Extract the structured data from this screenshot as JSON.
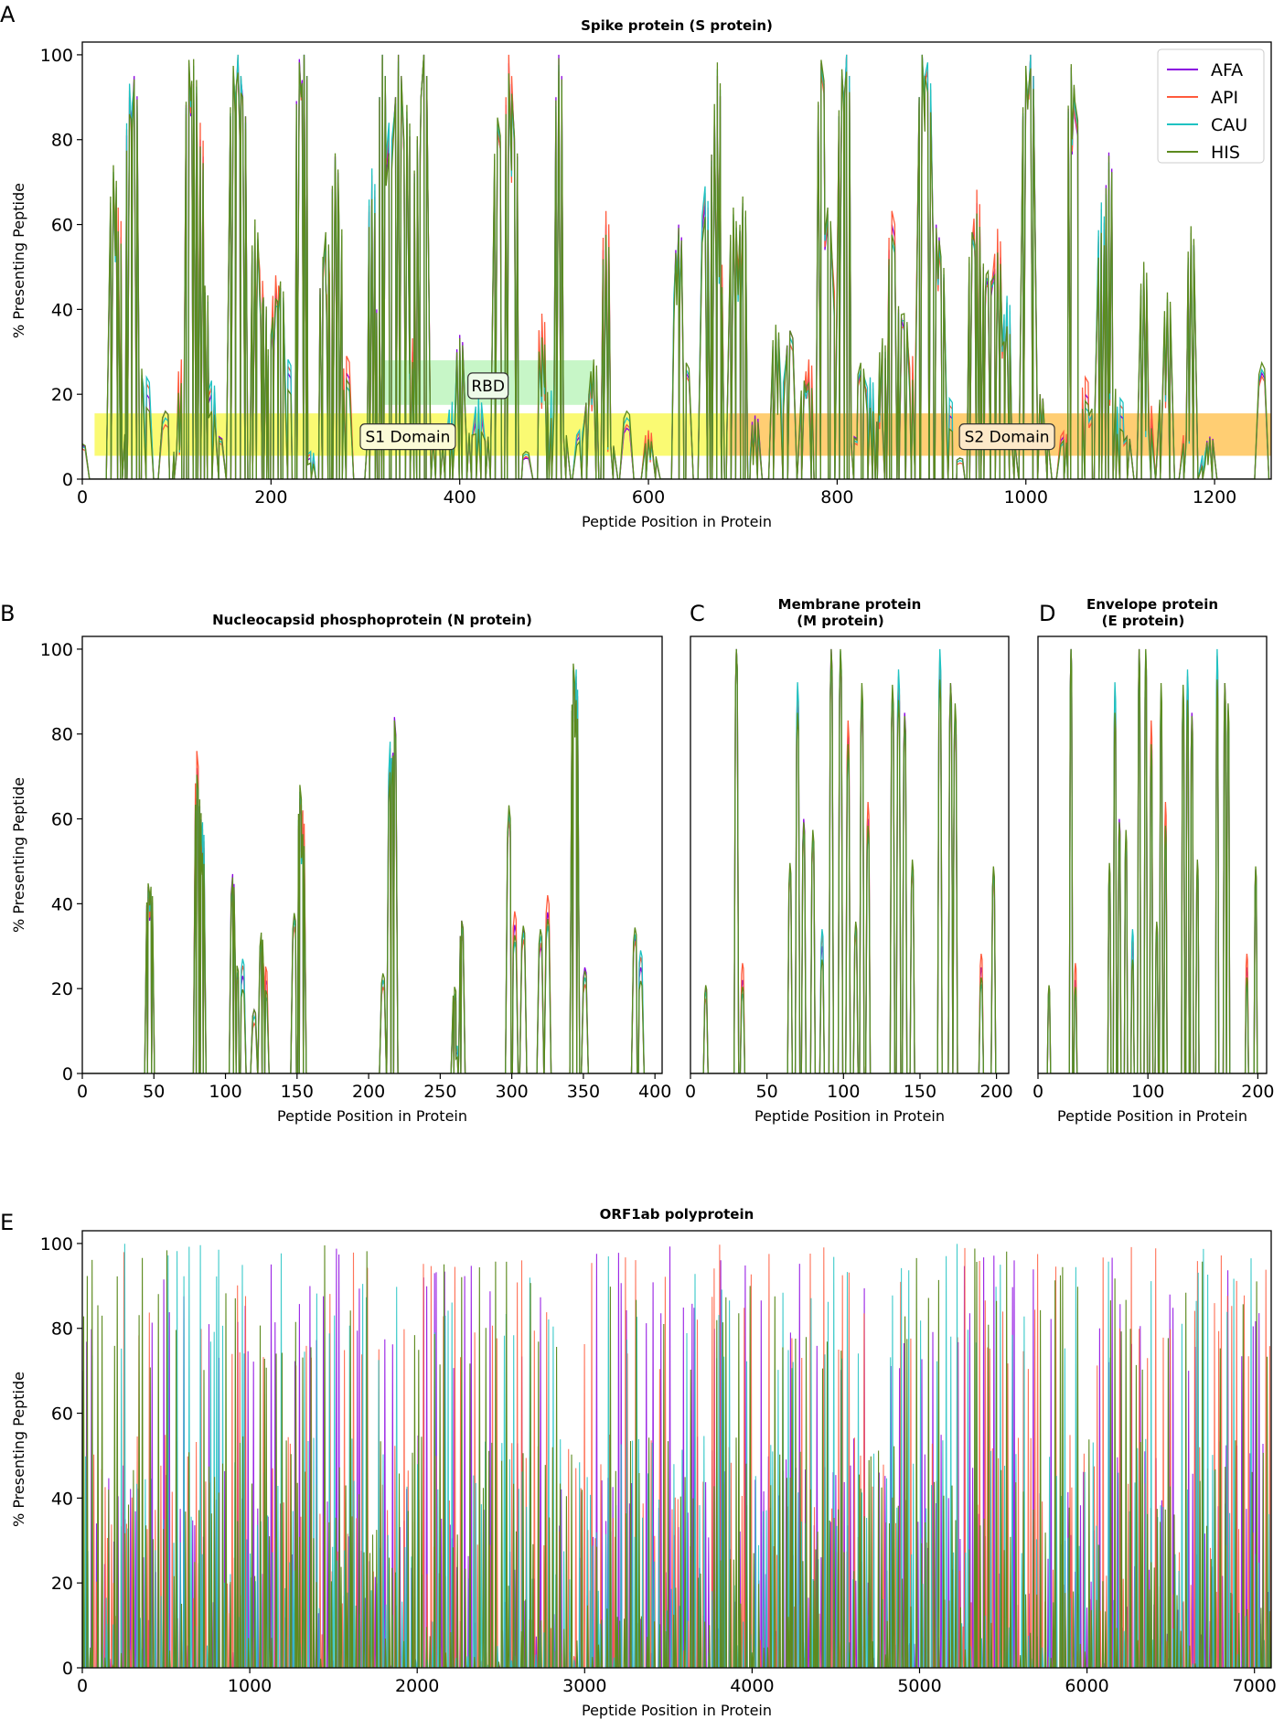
{
  "chart_data": [
    {
      "panel": "A",
      "type": "line",
      "title": "Spike protein (S protein)",
      "xlabel": "Peptide Position in Protein",
      "ylabel": "% Presenting Peptide",
      "xlim": [
        0,
        1260
      ],
      "ylim": [
        0,
        103
      ],
      "xticks": [
        0,
        200,
        400,
        600,
        800,
        1000,
        1200
      ],
      "yticks": [
        0,
        20,
        40,
        60,
        80,
        100
      ],
      "legend": {
        "position": "top-right",
        "entries": [
          "AFA",
          "API",
          "CAU",
          "HIS"
        ]
      },
      "series": [
        {
          "name": "AFA",
          "color": "#8a00e0"
        },
        {
          "name": "API",
          "color": "#ff5a3c"
        },
        {
          "name": "CAU",
          "color": "#1fc2c2"
        },
        {
          "name": "HIS",
          "color": "#5c8a1e"
        }
      ],
      "peaks": [
        [
          0,
          8
        ],
        [
          33,
          70
        ],
        [
          38,
          60
        ],
        [
          45,
          10
        ],
        [
          50,
          90
        ],
        [
          55,
          95
        ],
        [
          60,
          25
        ],
        [
          68,
          20
        ],
        [
          88,
          16
        ],
        [
          100,
          6
        ],
        [
          105,
          25
        ],
        [
          113,
          98
        ],
        [
          118,
          95
        ],
        [
          125,
          80
        ],
        [
          130,
          44
        ],
        [
          137,
          20
        ],
        [
          145,
          10
        ],
        [
          160,
          95
        ],
        [
          165,
          99
        ],
        [
          170,
          90
        ],
        [
          183,
          58
        ],
        [
          188,
          46
        ],
        [
          192,
          42
        ],
        [
          200,
          30
        ],
        [
          205,
          44
        ],
        [
          210,
          45
        ],
        [
          218,
          25
        ],
        [
          230,
          99
        ],
        [
          235,
          100
        ],
        [
          242,
          5
        ],
        [
          255,
          50
        ],
        [
          258,
          55
        ],
        [
          262,
          45
        ],
        [
          268,
          76
        ],
        [
          272,
          58
        ],
        [
          280,
          25
        ],
        [
          305,
          10
        ],
        [
          307,
          70
        ],
        [
          312,
          40
        ],
        [
          318,
          100
        ],
        [
          325,
          80
        ],
        [
          335,
          100
        ],
        [
          344,
          85
        ],
        [
          350,
          30
        ],
        [
          355,
          80
        ],
        [
          362,
          100
        ],
        [
          372,
          10
        ],
        [
          382,
          8
        ],
        [
          392,
          15
        ],
        [
          400,
          34
        ],
        [
          410,
          10
        ],
        [
          420,
          15
        ],
        [
          430,
          10
        ],
        [
          440,
          82
        ],
        [
          452,
          98
        ],
        [
          458,
          80
        ],
        [
          470,
          5
        ],
        [
          487,
          35
        ],
        [
          490,
          20
        ],
        [
          500,
          20
        ],
        [
          505,
          100
        ],
        [
          510,
          10
        ],
        [
          527,
          10
        ],
        [
          537,
          20
        ],
        [
          542,
          25
        ],
        [
          555,
          60
        ],
        [
          560,
          8
        ],
        [
          577,
          12
        ],
        [
          600,
          10
        ],
        [
          605,
          5
        ],
        [
          630,
          45
        ],
        [
          632,
          60
        ],
        [
          640,
          25
        ],
        [
          660,
          65
        ],
        [
          670,
          85
        ],
        [
          673,
          95
        ],
        [
          675,
          50
        ],
        [
          680,
          10
        ],
        [
          690,
          60
        ],
        [
          695,
          45
        ],
        [
          700,
          65
        ],
        [
          708,
          5
        ],
        [
          713,
          15
        ],
        [
          735,
          34
        ],
        [
          740,
          20
        ],
        [
          750,
          35
        ],
        [
          765,
          20
        ],
        [
          770,
          25
        ],
        [
          783,
          98
        ],
        [
          790,
          60
        ],
        [
          800,
          45
        ],
        [
          805,
          95
        ],
        [
          810,
          100
        ],
        [
          818,
          10
        ],
        [
          825,
          25
        ],
        [
          835,
          20
        ],
        [
          845,
          15
        ],
        [
          848,
          30
        ],
        [
          858,
          60
        ],
        [
          865,
          40
        ],
        [
          871,
          35
        ],
        [
          880,
          25
        ],
        [
          890,
          100
        ],
        [
          896,
          95
        ],
        [
          905,
          60
        ],
        [
          910,
          50
        ],
        [
          919,
          15
        ],
        [
          930,
          5
        ],
        [
          943,
          55
        ],
        [
          948,
          65
        ],
        [
          955,
          50
        ],
        [
          960,
          45
        ],
        [
          970,
          55
        ],
        [
          975,
          30
        ],
        [
          980,
          40
        ],
        [
          985,
          10
        ],
        [
          1000,
          95
        ],
        [
          1005,
          100
        ],
        [
          1015,
          20
        ],
        [
          1020,
          10
        ],
        [
          1040,
          10
        ],
        [
          1048,
          97
        ],
        [
          1052,
          85
        ],
        [
          1063,
          20
        ],
        [
          1070,
          15
        ],
        [
          1080,
          62
        ],
        [
          1088,
          77
        ],
        [
          1092,
          20
        ],
        [
          1100,
          15
        ],
        [
          1107,
          10
        ],
        [
          1125,
          48
        ],
        [
          1130,
          15
        ],
        [
          1145,
          20
        ],
        [
          1150,
          40
        ],
        [
          1170,
          10
        ],
        [
          1175,
          58
        ],
        [
          1190,
          5
        ],
        [
          1195,
          10
        ],
        [
          1250,
          25
        ]
      ],
      "regions": [
        {
          "label": "S1 Domain",
          "x": [
            13,
            685
          ],
          "y": [
            5.5,
            15.5
          ],
          "color": "#f5f500"
        },
        {
          "label": "S2 Domain",
          "x": [
            685,
            1260
          ],
          "y": [
            5.5,
            15.5
          ],
          "color": "#ffa500"
        },
        {
          "label": "RBD",
          "x": [
            319,
            541
          ],
          "y": [
            17.5,
            28
          ],
          "color": "#90ee90"
        }
      ]
    },
    {
      "panel": "B",
      "type": "line",
      "title": "Nucleocapsid phosphoprotein (N protein)",
      "xlabel": "Peptide Position in Protein",
      "ylabel": "% Presenting Peptide",
      "xlim": [
        0,
        405
      ],
      "ylim": [
        0,
        103
      ],
      "xticks": [
        0,
        50,
        100,
        150,
        200,
        250,
        300,
        350,
        400
      ],
      "yticks": [
        0,
        20,
        40,
        60,
        80,
        100
      ],
      "peaks": [
        [
          46,
          44
        ],
        [
          48,
          40
        ],
        [
          80,
          72
        ],
        [
          82,
          63
        ],
        [
          84,
          56
        ],
        [
          105,
          47
        ],
        [
          108,
          23
        ],
        [
          112,
          23
        ],
        [
          120,
          15
        ],
        [
          125,
          30
        ],
        [
          128,
          22
        ],
        [
          148,
          37
        ],
        [
          152,
          64
        ],
        [
          154,
          58
        ],
        [
          210,
          22
        ],
        [
          215,
          75
        ],
        [
          218,
          84
        ],
        [
          260,
          18
        ],
        [
          262,
          5
        ],
        [
          265,
          36
        ],
        [
          298,
          60
        ],
        [
          302,
          35
        ],
        [
          308,
          34
        ],
        [
          320,
          30
        ],
        [
          325,
          38
        ],
        [
          343,
          95
        ],
        [
          345,
          92
        ],
        [
          351,
          25
        ],
        [
          386,
          32
        ],
        [
          390,
          25
        ]
      ]
    },
    {
      "panel": "C",
      "type": "line",
      "title": "Membrane protein (M protein)",
      "xlabel": "Peptide Position in Protein",
      "xlim": [
        0,
        208
      ],
      "ylim": [
        0,
        103
      ],
      "xticks": [
        0,
        50,
        100,
        150,
        200
      ],
      "peaks": [
        [
          10,
          20
        ],
        [
          30,
          100
        ],
        [
          34,
          22
        ],
        [
          65,
          48
        ],
        [
          70,
          89
        ],
        [
          74,
          60
        ],
        [
          80,
          55
        ],
        [
          86,
          30
        ],
        [
          92,
          100
        ],
        [
          98,
          98
        ],
        [
          103,
          80
        ],
        [
          108,
          35
        ],
        [
          112,
          88
        ],
        [
          116,
          60
        ],
        [
          132,
          90
        ],
        [
          136,
          92
        ],
        [
          140,
          85
        ],
        [
          145,
          48
        ],
        [
          163,
          96
        ],
        [
          170,
          92
        ],
        [
          173,
          84
        ],
        [
          190,
          25
        ],
        [
          198,
          48
        ]
      ]
    },
    {
      "panel": "D",
      "type": "line",
      "title": "Envelope protein (E protein)",
      "xlabel": "Peptide Position in Protein",
      "xlim": [
        0,
        208
      ],
      "ylim": [
        0,
        103
      ],
      "xticks": [
        0,
        100,
        200
      ],
      "peaks": [
        [
          10,
          20
        ],
        [
          30,
          100
        ],
        [
          34,
          22
        ],
        [
          65,
          48
        ],
        [
          70,
          89
        ],
        [
          74,
          60
        ],
        [
          80,
          55
        ],
        [
          86,
          30
        ],
        [
          92,
          100
        ],
        [
          98,
          98
        ],
        [
          103,
          80
        ],
        [
          108,
          35
        ],
        [
          112,
          88
        ],
        [
          116,
          60
        ],
        [
          132,
          90
        ],
        [
          136,
          92
        ],
        [
          140,
          85
        ],
        [
          145,
          48
        ],
        [
          163,
          96
        ],
        [
          170,
          92
        ],
        [
          173,
          84
        ],
        [
          190,
          25
        ],
        [
          198,
          48
        ]
      ]
    },
    {
      "panel": "E",
      "type": "line",
      "title": "ORF1ab polyprotein",
      "xlabel": "Peptide Position in Protein",
      "ylabel": "% Presenting Peptide",
      "xlim": [
        0,
        7100
      ],
      "ylim": [
        0,
        103
      ],
      "xticks": [
        0,
        1000,
        2000,
        3000,
        4000,
        5000,
        6000,
        7000
      ],
      "yticks": [
        0,
        20,
        40,
        60,
        80,
        100
      ],
      "note": "dense peaks spanning positions 0-7100, values 0-100"
    }
  ]
}
